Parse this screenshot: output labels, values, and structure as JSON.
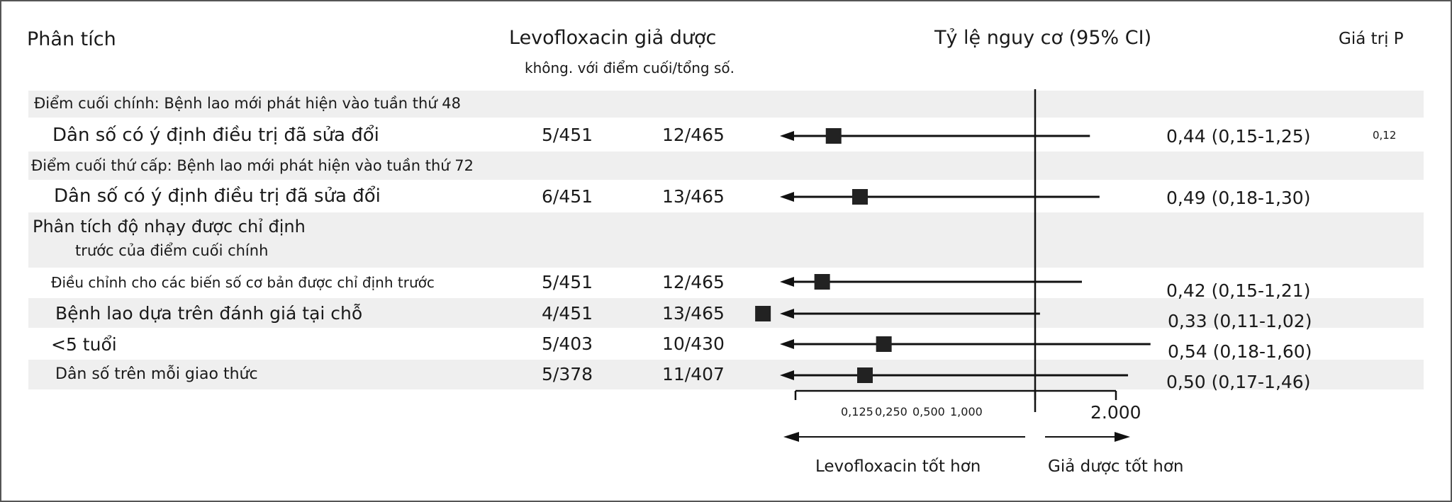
{
  "headers": {
    "analysis": "Phân tích",
    "groups": "Levofloxacin giả dược",
    "groups_sub": "không. với điểm cuối/tổng số.",
    "ratio": "Tỷ lệ nguy cơ (95% CI)",
    "pvalue": "Giá trị P"
  },
  "sections": {
    "primary": "Điểm cuối chính: Bệnh lao mới phát hiện vào tuần thứ 48",
    "secondary": "Điểm cuối thứ cấp: Bệnh lao mới phát hiện vào tuần thứ 72",
    "sensitivity_line1": "Phân tích độ nhạy được chỉ định",
    "sensitivity_line2": "trước của điểm cuối chính"
  },
  "chart_data": {
    "type": "forest",
    "x_axis": {
      "scale": "log2",
      "ticks": [
        "0,125",
        "0,250",
        "0,500",
        "1,000",
        "2.000"
      ],
      "reference_line": 1
    },
    "direction_labels": {
      "left": "Levofloxacin tốt hơn",
      "right": "Giả dược tốt hơn"
    },
    "rows": [
      {
        "label": "Dân số có ý định điều trị đã sửa đổi",
        "levo": "5/451",
        "placebo": "12/465",
        "hr_text": "0,44 (0,15-1,25)",
        "p": "0,12",
        "hr": 0.44,
        "lo": 0.15,
        "hi": 1.25
      },
      {
        "label": "Dân số có ý định điều trị đã sửa đổi",
        "levo": "6/451",
        "placebo": "13/465",
        "hr_text": "0,49 (0,18-1,30)",
        "p": "",
        "hr": 0.49,
        "lo": 0.18,
        "hi": 1.3
      },
      {
        "label": "Điều chỉnh cho các biến số cơ bản được chỉ định trước",
        "levo": "5/451",
        "placebo": "12/465",
        "hr_text": "0,42 (0,15-1,21)",
        "p": "",
        "hr": 0.42,
        "lo": 0.15,
        "hi": 1.21
      },
      {
        "label": "Bệnh lao dựa trên đánh giá tại chỗ",
        "levo": "4/451",
        "placebo": "13/465",
        "hr_text": "0,33 (0,11-1,02)",
        "p": "",
        "hr": 0.33,
        "lo": 0.11,
        "hi": 1.02
      },
      {
        "label": "<5 tuổi",
        "levo": "5/403",
        "placebo": "10/430",
        "hr_text": "0,54 (0,18-1,60)",
        "p": "",
        "hr": 0.54,
        "lo": 0.18,
        "hi": 1.6
      },
      {
        "label": "Dân số trên mỗi giao thức",
        "levo": "5/378",
        "placebo": "11/407",
        "hr_text": "0,50 (0,17-1,46)",
        "p": "",
        "hr": 0.5,
        "lo": 0.17,
        "hi": 1.46
      }
    ]
  }
}
